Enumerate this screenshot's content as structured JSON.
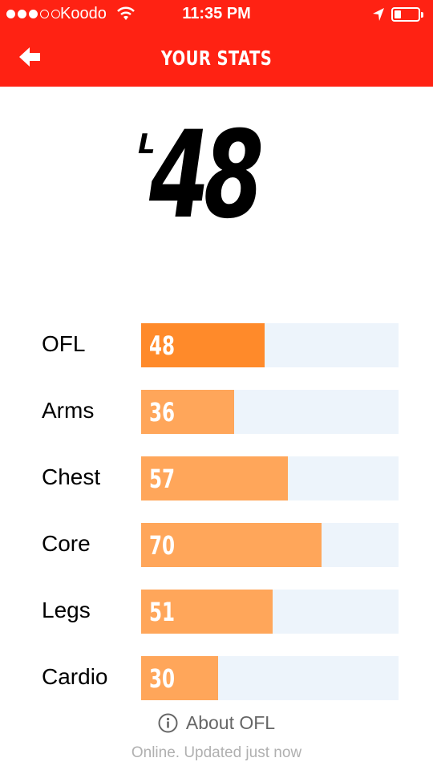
{
  "status_bar": {
    "carrier": "Koodo",
    "time": "11:35 PM",
    "signal_bars_filled": 3,
    "signal_bars_total": 5,
    "battery_level": 0.3
  },
  "header": {
    "title": "YOUR STATS",
    "background_color": "#ff2213",
    "back_icon": "arrow-left-icon"
  },
  "score": {
    "prefix": "L",
    "value": "48"
  },
  "stats": [
    {
      "label": "OFL",
      "value": "48",
      "color": "#ff8a2a"
    },
    {
      "label": "Arms",
      "value": "36",
      "color": "#ffa65a"
    },
    {
      "label": "Chest",
      "value": "57",
      "color": "#ffa65a"
    },
    {
      "label": "Core",
      "value": "70",
      "color": "#ffa65a"
    },
    {
      "label": "Legs",
      "value": "51",
      "color": "#ffa65a"
    },
    {
      "label": "Cardio",
      "value": "30",
      "color": "#ffa65a"
    }
  ],
  "stats_scale_max": 100,
  "track_color": "#edf4fb",
  "footer": {
    "about_label": "About OFL",
    "info_icon": "info-circle-icon",
    "updated_text": "Online. Updated just now"
  }
}
